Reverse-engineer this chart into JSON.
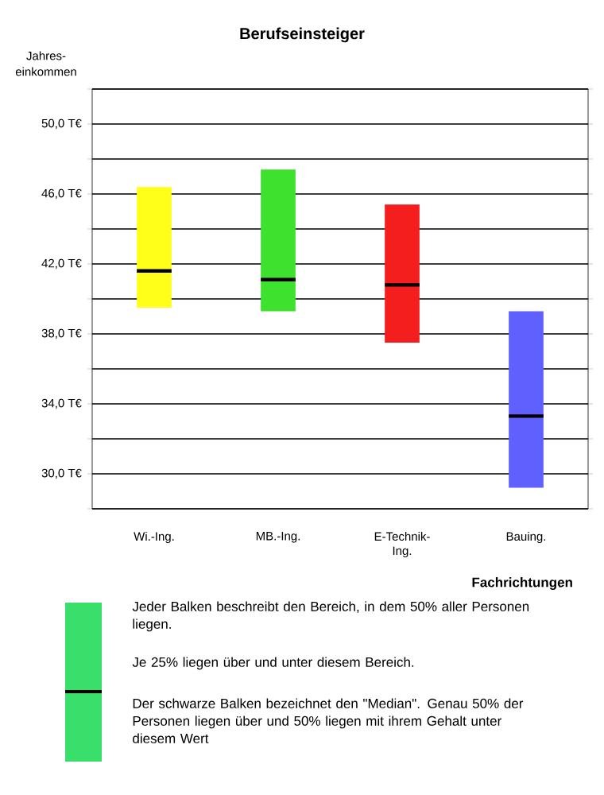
{
  "chart_data": {
    "type": "box",
    "title": "Berufseinsteiger",
    "xlabel": "Fachrichtungen",
    "ylabel": "Jahres-einkommen",
    "categories": [
      "Wi.-Ing.",
      "MB.-Ing.",
      "E-Technik-Ing.",
      "Bauing."
    ],
    "colors": [
      "#ffff19",
      "#3ee22e",
      "#f51e1e",
      "#6060ff"
    ],
    "boxes": [
      {
        "low": 39.5,
        "q1": 39.5,
        "median": 41.6,
        "q3": 46.4,
        "high": 46.4
      },
      {
        "low": 39.3,
        "q1": 39.3,
        "median": 41.1,
        "q3": 47.4,
        "high": 47.4
      },
      {
        "low": 37.5,
        "q1": 37.5,
        "median": 40.8,
        "q3": 45.4,
        "high": 45.4
      },
      {
        "low": 29.2,
        "q1": 29.2,
        "median": 33.3,
        "q3": 39.3,
        "high": 39.3
      }
    ],
    "ylim": [
      28,
      52
    ],
    "yticks": [
      {
        "value": 28,
        "label": null
      },
      {
        "value": 30,
        "label": "30,0 T€"
      },
      {
        "value": 32,
        "label": null
      },
      {
        "value": 34,
        "label": "34,0 T€"
      },
      {
        "value": 36,
        "label": null
      },
      {
        "value": 38,
        "label": "38,0 T€"
      },
      {
        "value": 40,
        "label": null
      },
      {
        "value": 42,
        "label": "42,0 T€"
      },
      {
        "value": 44,
        "label": null
      },
      {
        "value": 46,
        "label": "46,0 T€"
      },
      {
        "value": 48,
        "label": null
      },
      {
        "value": 50,
        "label": "50,0 T€"
      },
      {
        "value": 52,
        "label": null
      }
    ],
    "grid": "y",
    "annotations": [
      "Jeder Balken beschreibt den Bereich, in dem 50% aller Personen liegen.",
      "Je 25% liegen über und unter diesem Bereich.",
      "Der schwarze Balken bezeichnet den \"Median\". Genau 50% der Personen liegen über und 50% liegen mit ihrem Gehalt unter diesem Wert"
    ]
  }
}
